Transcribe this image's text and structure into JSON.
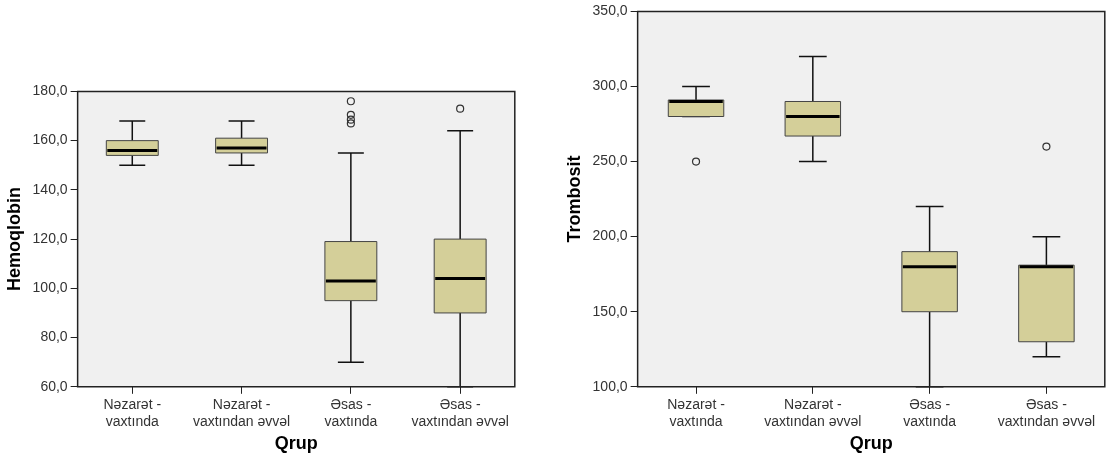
{
  "chart_data": [
    {
      "type": "box",
      "xlabel": "Qrup",
      "ylabel": "Hemoqlobin",
      "categories": [
        "Nəzarət - vaxtında",
        "Nəzarət - vaxtından əvvəl",
        "Əsas - vaxtında",
        "Əsas - vaxtından əvvəl"
      ],
      "color": "#d4cf99",
      "ylim": [
        60,
        180
      ],
      "yticks": [
        {
          "value": 60,
          "label": "60,0"
        },
        {
          "value": 80,
          "label": "80,0"
        },
        {
          "value": 100,
          "label": "100,0"
        },
        {
          "value": 120,
          "label": "120,0"
        },
        {
          "value": 140,
          "label": "140,0"
        },
        {
          "value": 160,
          "label": "160,0"
        },
        {
          "value": 180,
          "label": "180,0"
        }
      ],
      "boxes": [
        {
          "low": 150,
          "q1": 154,
          "median": 156,
          "q3": 160,
          "high": 168
        },
        {
          "low": 150,
          "q1": 155,
          "median": 157,
          "q3": 161,
          "high": 168
        },
        {
          "low": 70,
          "q1": 95,
          "median": 103,
          "q3": 119,
          "high": 155,
          "outliers": [
            176,
            170.5,
            168.5,
            167
          ]
        },
        {
          "low": 60,
          "q1": 90,
          "median": 104,
          "q3": 120,
          "high": 164,
          "outliers": [
            173
          ]
        }
      ]
    },
    {
      "type": "box",
      "xlabel": "Qrup",
      "ylabel": "Trombosit",
      "categories": [
        "Nəzarət - vaxtında",
        "Nəzarət - vaxtından əvvəl",
        "Əsas - vaxtında",
        "Əsas - vaxtından əvvəl"
      ],
      "color": "#d4cf99",
      "ylim": [
        100,
        350
      ],
      "yticks": [
        {
          "value": 100,
          "label": "100,0"
        },
        {
          "value": 150,
          "label": "150,0"
        },
        {
          "value": 200,
          "label": "200,0"
        },
        {
          "value": 250,
          "label": "250,0"
        },
        {
          "value": 300,
          "label": "300,0"
        },
        {
          "value": 350,
          "label": "350,0"
        }
      ],
      "boxes": [
        {
          "low": 280,
          "q1": 280,
          "median": 290,
          "q3": 291,
          "high": 300,
          "outliers": [
            250
          ]
        },
        {
          "low": 250,
          "q1": 267,
          "median": 280,
          "q3": 290,
          "high": 320
        },
        {
          "low": 100,
          "q1": 150,
          "median": 180,
          "q3": 190,
          "high": 220
        },
        {
          "low": 120,
          "q1": 130,
          "median": 180,
          "q3": 181,
          "high": 200,
          "outliers": [
            260
          ]
        }
      ]
    }
  ]
}
